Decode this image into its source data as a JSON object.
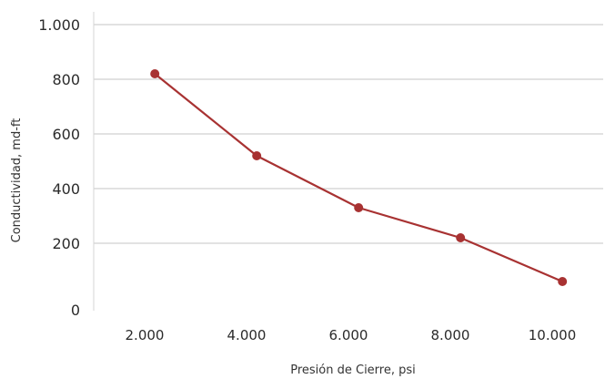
{
  "chart_data": {
    "type": "line",
    "title": "",
    "xlabel": "Presión de Cierre, psi",
    "ylabel": "Conductividad, md-ft",
    "xlim": [
      1000,
      11000
    ],
    "ylim": [
      0,
      1000
    ],
    "x_ticks": [
      {
        "value": 2000,
        "label": "2.000"
      },
      {
        "value": 4000,
        "label": "4.000"
      },
      {
        "value": 6000,
        "label": "6.000"
      },
      {
        "value": 8000,
        "label": "8.000"
      },
      {
        "value": 10000,
        "label": "10.000"
      }
    ],
    "y_ticks": [
      {
        "value": 0,
        "label": "0"
      },
      {
        "value": 200,
        "label": "200"
      },
      {
        "value": 400,
        "label": "400"
      },
      {
        "value": 600,
        "label": "600"
      },
      {
        "value": 800,
        "label": "800"
      },
      {
        "value": 1000,
        "label": "1.000"
      }
    ],
    "grid": "horizontal",
    "legend": "none",
    "series": [
      {
        "color": "#a83232",
        "x": [
          2200,
          4200,
          6200,
          8200,
          10200
        ],
        "y": [
          820,
          520,
          330,
          220,
          60
        ]
      }
    ]
  }
}
